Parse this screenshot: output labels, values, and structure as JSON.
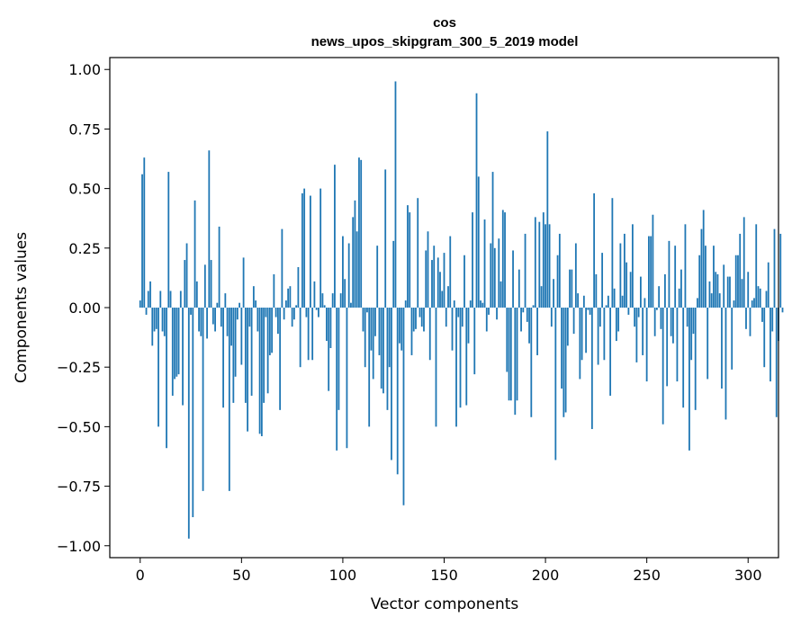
{
  "chart_data": {
    "type": "bar",
    "title": "cos",
    "subtitle": "news_upos_skipgram_300_5_2019 model",
    "xlabel": "Vector components",
    "ylabel": "Components values",
    "xlim": [
      -15,
      315
    ],
    "ylim": [
      -1.05,
      1.05
    ],
    "x_ticks": [
      0,
      50,
      100,
      150,
      200,
      250,
      300
    ],
    "y_ticks": [
      1.0,
      0.75,
      0.5,
      0.25,
      0.0,
      -0.25,
      -0.5,
      -0.75,
      -1.0
    ],
    "y_tick_labels": [
      "1.00",
      "0.75",
      "0.50",
      "0.25",
      "0.00",
      "−0.25",
      "−0.50",
      "−0.75",
      "−1.00"
    ],
    "bar_color": "#1f77b4",
    "grid": false,
    "values": [
      0.03,
      0.56,
      0.63,
      -0.03,
      0.07,
      0.11,
      -0.16,
      -0.1,
      -0.09,
      -0.5,
      0.07,
      -0.1,
      -0.12,
      -0.59,
      0.57,
      0.07,
      -0.37,
      -0.3,
      -0.29,
      -0.28,
      0.07,
      -0.41,
      0.2,
      0.27,
      -0.97,
      -0.03,
      -0.88,
      0.45,
      0.11,
      -0.1,
      -0.12,
      -0.77,
      0.18,
      -0.13,
      0.66,
      0.2,
      -0.07,
      -0.1,
      0.02,
      0.34,
      -0.08,
      -0.42,
      0.06,
      -0.12,
      -0.77,
      -0.16,
      -0.4,
      -0.29,
      -0.05,
      0.02,
      -0.24,
      0.21,
      -0.4,
      -0.52,
      -0.08,
      -0.37,
      0.09,
      0.03,
      -0.1,
      -0.53,
      -0.54,
      -0.4,
      -0.04,
      -0.36,
      -0.2,
      -0.19,
      0.14,
      -0.04,
      -0.11,
      -0.43,
      0.33,
      -0.05,
      0.03,
      0.08,
      0.09,
      -0.08,
      -0.05,
      0.01,
      0.17,
      -0.25,
      0.48,
      0.5,
      -0.04,
      -0.22,
      0.47,
      -0.22,
      0.11,
      -0.01,
      -0.04,
      0.5,
      0.06,
      0.01,
      -0.14,
      -0.35,
      -0.17,
      0.06,
      0.6,
      -0.6,
      -0.43,
      0.06,
      0.3,
      0.12,
      -0.59,
      0.27,
      0.02,
      0.38,
      0.45,
      0.32,
      0.63,
      0.62,
      -0.1,
      -0.25,
      -0.02,
      -0.5,
      -0.18,
      -0.3,
      -0.12,
      0.26,
      -0.2,
      -0.34,
      -0.36,
      0.58,
      -0.43,
      -0.25,
      -0.64,
      0.28,
      0.95,
      -0.7,
      -0.15,
      -0.18,
      -0.83,
      0.03,
      0.43,
      0.4,
      -0.2,
      -0.1,
      -0.09,
      0.46,
      -0.04,
      -0.08,
      -0.1,
      0.24,
      0.32,
      -0.22,
      0.2,
      0.26,
      -0.5,
      0.21,
      0.15,
      0.07,
      0.23,
      -0.08,
      0.09,
      0.3,
      -0.18,
      0.03,
      -0.5,
      -0.04,
      -0.42,
      -0.08,
      0.22,
      -0.41,
      -0.15,
      0.03,
      0.4,
      -0.28,
      0.9,
      0.55,
      0.03,
      0.02,
      0.37,
      -0.1,
      -0.03,
      0.27,
      0.57,
      0.25,
      -0.05,
      0.29,
      0.11,
      0.41,
      0.4,
      -0.27,
      -0.39,
      -0.39,
      0.24,
      -0.45,
      -0.39,
      0.16,
      -0.1,
      -0.02,
      0.31,
      -0.06,
      -0.15,
      -0.46,
      0.01,
      0.38,
      -0.2,
      0.36,
      0.09,
      0.4,
      0.35,
      0.74,
      0.35,
      -0.08,
      0.12,
      -0.64,
      0.22,
      0.31,
      -0.34,
      -0.46,
      -0.44,
      -0.16,
      0.16,
      0.16,
      -0.11,
      0.27,
      0.06,
      -0.3,
      -0.22,
      0.05,
      -0.19,
      -0.01,
      -0.03,
      -0.51,
      0.48,
      0.14,
      -0.24,
      -0.08,
      0.23,
      -0.22,
      0.01,
      0.05,
      -0.37,
      0.46,
      0.08,
      -0.14,
      -0.1,
      0.27,
      0.05,
      0.31,
      0.19,
      -0.03,
      0.15,
      0.35,
      -0.08,
      -0.23,
      -0.04,
      0.13,
      -0.2,
      0.04,
      -0.31,
      0.3,
      0.3,
      0.39,
      -0.12,
      -0.01,
      0.09,
      -0.09,
      -0.49,
      0.14,
      -0.33,
      0.28,
      -0.12,
      -0.15,
      0.26,
      -0.31,
      0.08,
      0.16,
      -0.42,
      0.35,
      -0.08,
      -0.6,
      -0.22,
      -0.11,
      -0.43,
      0.04,
      0.22,
      0.33,
      0.41,
      0.26,
      -0.3,
      0.11,
      0.06,
      0.26,
      0.15,
      0.14,
      0.06,
      -0.34,
      0.18,
      -0.47,
      0.13,
      0.13,
      -0.26,
      0.03,
      0.22,
      0.22,
      0.31,
      0.12,
      0.38,
      -0.09,
      0.15,
      -0.12,
      0.03,
      0.04,
      0.35,
      0.09,
      0.08,
      -0.06,
      -0.25,
      0.07,
      0.19,
      -0.31,
      -0.1,
      0.33,
      -0.46,
      -0.14,
      0.31,
      -0.02
    ]
  }
}
